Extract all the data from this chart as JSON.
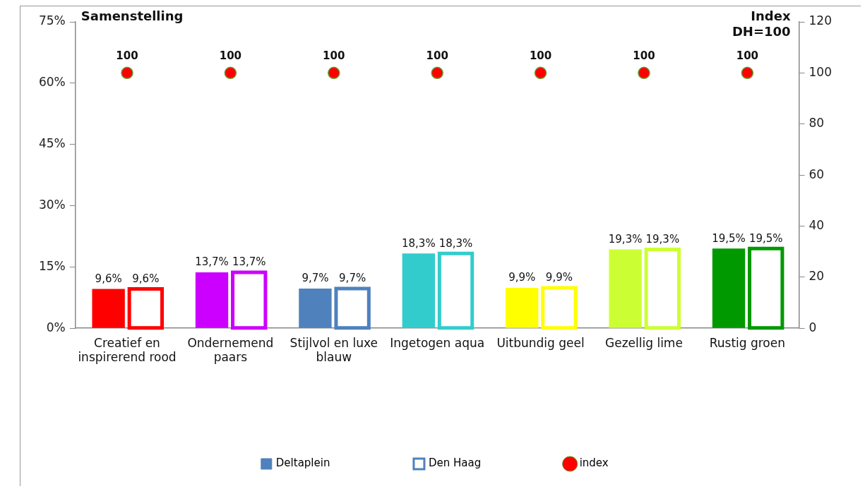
{
  "chart_data": {
    "type": "bar",
    "title": "Samenstelling",
    "y2label": "Index DH=100",
    "categories": [
      "Creatief en inspirerend rood",
      "Ondernemend paars",
      "Stijlvol en luxe blauw",
      "Ingetogen aqua",
      "Uitbundig geel",
      "Gezellig lime",
      "Rustig groen"
    ],
    "series": [
      {
        "name": "Deltaplein",
        "color": "#4f81bd",
        "colors": [
          "#ff0000",
          "#cc00ff",
          "#4f81bd",
          "#33cccc",
          "#ffff00",
          "#ccff33",
          "#009900"
        ],
        "values": [
          9.6,
          13.7,
          9.7,
          18.3,
          9.9,
          19.3,
          19.5
        ],
        "value_labels": [
          "9,6%",
          "13,7%",
          "9,7%",
          "18,3%",
          "9,9%",
          "19,3%",
          "19,5%"
        ]
      },
      {
        "name": "Den Haag",
        "color": "#4f81bd",
        "colors": [
          "#ff0000",
          "#cc00ff",
          "#4f81bd",
          "#33cccc",
          "#ffff00",
          "#ccff33",
          "#009900"
        ],
        "values": [
          9.6,
          13.7,
          9.7,
          18.3,
          9.9,
          19.3,
          19.5
        ],
        "value_labels": [
          "9,6%",
          "13,7%",
          "9,7%",
          "18,3%",
          "9,9%",
          "19,3%",
          "19,5%"
        ]
      },
      {
        "name": "index",
        "type": "scatter",
        "axis": "y2",
        "marker": "circle",
        "color": "#ff0000",
        "values": [
          100,
          100,
          100,
          100,
          100,
          100,
          100
        ],
        "value_labels": [
          "100",
          "100",
          "100",
          "100",
          "100",
          "100",
          "100"
        ]
      }
    ],
    "ylim": [
      0,
      75
    ],
    "yticks": [
      {
        "value": 0,
        "label": "0%"
      },
      {
        "value": 15,
        "label": "15%"
      },
      {
        "value": 30,
        "label": "30%"
      },
      {
        "value": 45,
        "label": "45%"
      },
      {
        "value": 60,
        "label": "60%"
      },
      {
        "value": 75,
        "label": "75%"
      }
    ],
    "y2lim": [
      0,
      120
    ],
    "y2ticks": [
      0,
      20,
      40,
      60,
      80,
      100,
      120
    ],
    "grid": false,
    "legend": "bottom"
  }
}
